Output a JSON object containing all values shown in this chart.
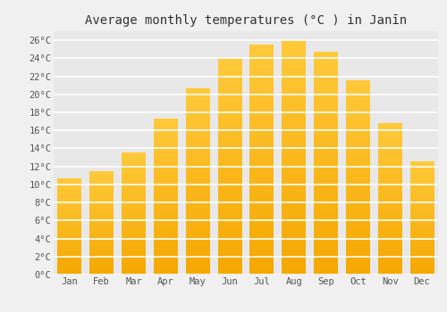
{
  "title": "Average monthly temperatures (°C ) in Janīn",
  "months": [
    "Jan",
    "Feb",
    "Mar",
    "Apr",
    "May",
    "Jun",
    "Jul",
    "Aug",
    "Sep",
    "Oct",
    "Nov",
    "Dec"
  ],
  "temperatures": [
    10.6,
    11.4,
    13.5,
    17.3,
    20.6,
    23.9,
    25.5,
    26.0,
    24.7,
    21.5,
    16.8,
    12.5
  ],
  "bar_color_top": "#FFC93A",
  "bar_color_bottom": "#F5A800",
  "ylim": [
    0,
    27
  ],
  "ytick_step": 2,
  "background_color": "#f0f0f0",
  "plot_bg_color": "#e8e8e8",
  "grid_color": "#ffffff",
  "title_fontsize": 10,
  "tick_fontsize": 7.5,
  "font_family": "monospace"
}
